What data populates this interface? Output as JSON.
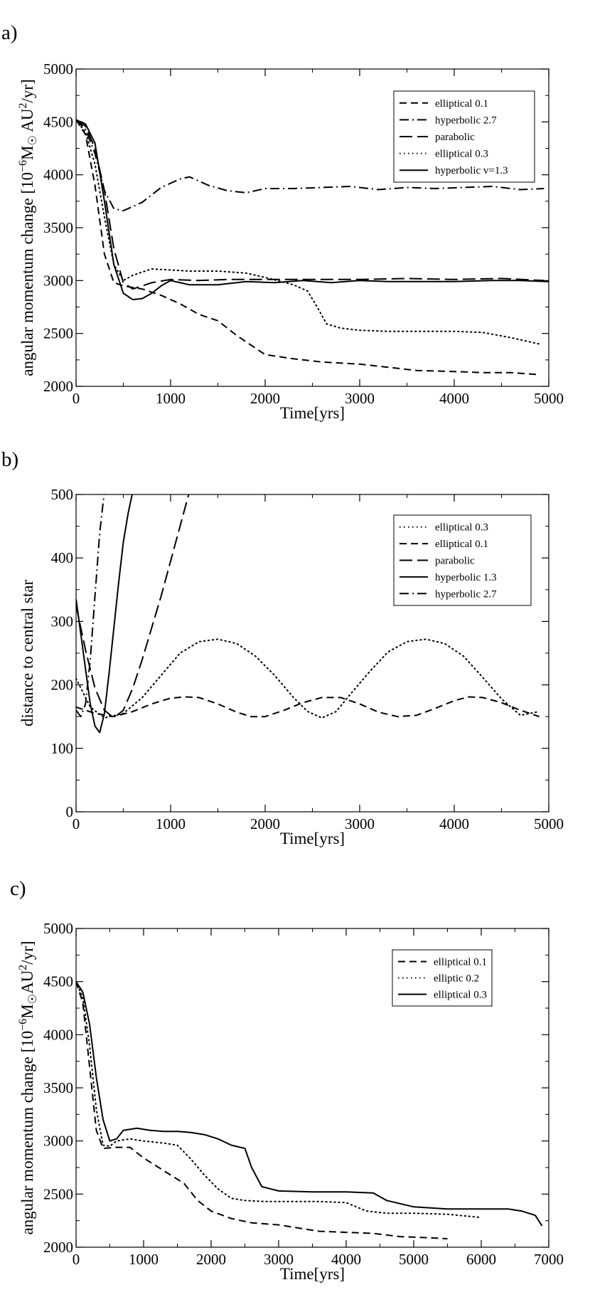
{
  "chart_data": [
    {
      "type": "line",
      "panel": "a)",
      "xlabel": "Time[yrs]",
      "ylabel": "angular momentum change [10^-6 M☉ AU²/yr]",
      "ylabel_parts": {
        "base": "angular momentum change [10",
        "exp1": "−6",
        "mass": "M",
        "sun": "☉",
        "au": " AU",
        "exp2": "2",
        "tail": "/yr]"
      },
      "xlim": [
        0,
        5000
      ],
      "ylim": [
        2000,
        5000
      ],
      "xticks": [
        0,
        1000,
        2000,
        3000,
        4000,
        5000
      ],
      "yticks": [
        2000,
        2500,
        3000,
        3500,
        4000,
        4500,
        5000
      ],
      "legend_position": "top-right",
      "series": [
        {
          "name": "elliptical 0.1",
          "dash": "short-dash",
          "x": [
            0,
            100,
            200,
            300,
            400,
            500,
            700,
            900,
            1100,
            1300,
            1500,
            1700,
            2000,
            2300,
            2600,
            3000,
            3300,
            3600,
            4000,
            4300,
            4600,
            4900
          ],
          "y": [
            4520,
            4380,
            3900,
            3250,
            2980,
            2950,
            2920,
            2860,
            2780,
            2680,
            2620,
            2480,
            2300,
            2260,
            2230,
            2210,
            2180,
            2150,
            2140,
            2130,
            2130,
            2110
          ]
        },
        {
          "name": "hyperbolic 2.7",
          "dash": "dash-dot",
          "x": [
            0,
            100,
            200,
            300,
            400,
            500,
            700,
            900,
            1100,
            1200,
            1400,
            1600,
            1800,
            2000,
            2300,
            2600,
            2900,
            3200,
            3500,
            3800,
            4100,
            4400,
            4700,
            4950
          ],
          "y": [
            4520,
            4430,
            4200,
            3850,
            3680,
            3660,
            3740,
            3880,
            3960,
            3980,
            3900,
            3850,
            3830,
            3870,
            3870,
            3880,
            3890,
            3860,
            3880,
            3870,
            3880,
            3890,
            3860,
            3870
          ]
        },
        {
          "name": "parabolic",
          "dash": "long-dash",
          "x": [
            0,
            100,
            200,
            300,
            400,
            500,
            600,
            800,
            1000,
            1300,
            1600,
            2000,
            2500,
            3000,
            3500,
            4000,
            4500,
            4950
          ],
          "y": [
            4520,
            4460,
            4250,
            3850,
            3300,
            2980,
            2920,
            2980,
            3010,
            3000,
            3010,
            3010,
            3010,
            3010,
            3020,
            3010,
            3020,
            3000
          ]
        },
        {
          "name": "elliptical 0.3",
          "dash": "dotted",
          "x": [
            0,
            100,
            200,
            300,
            400,
            500,
            600,
            800,
            1000,
            1200,
            1500,
            1800,
            2000,
            2300,
            2450,
            2550,
            2650,
            2800,
            3000,
            3300,
            3600,
            4000,
            4300,
            4600,
            4900
          ],
          "y": [
            4520,
            4400,
            4100,
            3600,
            3150,
            3000,
            3050,
            3110,
            3100,
            3090,
            3090,
            3070,
            3030,
            2960,
            2900,
            2750,
            2590,
            2550,
            2530,
            2520,
            2520,
            2520,
            2510,
            2460,
            2400
          ]
        },
        {
          "name": "hyperbolic v=1.3",
          "dash": "solid",
          "x": [
            0,
            100,
            200,
            300,
            400,
            500,
            600,
            700,
            800,
            900,
            1000,
            1200,
            1500,
            1800,
            2100,
            2400,
            2700,
            3000,
            3300,
            3600,
            4000,
            4400,
            4700,
            5000
          ],
          "y": [
            4520,
            4480,
            4300,
            3750,
            3150,
            2880,
            2820,
            2830,
            2880,
            2950,
            3000,
            2960,
            2960,
            2990,
            2980,
            3000,
            2980,
            3000,
            2990,
            2990,
            2990,
            3000,
            3000,
            2990
          ]
        }
      ],
      "legend_order": [
        0,
        1,
        2,
        3,
        4
      ]
    },
    {
      "type": "line",
      "panel": "b)",
      "xlabel": "Time[yrs]",
      "ylabel": "distance to central star",
      "xlim": [
        0,
        5000
      ],
      "ylim": [
        0,
        500
      ],
      "xticks": [
        0,
        1000,
        2000,
        3000,
        4000,
        5000
      ],
      "yticks": [
        0,
        100,
        200,
        300,
        400,
        500
      ],
      "legend_position": "top-right",
      "series": [
        {
          "name": "elliptical 0.3",
          "dash": "dotted",
          "x": [
            0,
            150,
            300,
            500,
            700,
            900,
            1100,
            1300,
            1500,
            1700,
            1900,
            2100,
            2300,
            2450,
            2600,
            2750,
            2900,
            3100,
            3300,
            3500,
            3700,
            3900,
            4100,
            4300,
            4500,
            4700,
            4900
          ],
          "y": [
            210,
            165,
            148,
            155,
            180,
            215,
            250,
            268,
            272,
            265,
            245,
            215,
            180,
            158,
            148,
            158,
            185,
            220,
            252,
            268,
            272,
            265,
            245,
            212,
            178,
            152,
            158
          ]
        },
        {
          "name": "elliptical 0.1",
          "dash": "short-dash",
          "x": [
            0,
            200,
            400,
            600,
            800,
            1000,
            1150,
            1300,
            1500,
            1700,
            1850,
            2000,
            2200,
            2400,
            2600,
            2800,
            3000,
            3200,
            3400,
            3600,
            3800,
            4000,
            4150,
            4300,
            4500,
            4700,
            4900
          ],
          "y": [
            165,
            155,
            150,
            158,
            170,
            179,
            181,
            180,
            170,
            157,
            150,
            150,
            160,
            172,
            180,
            180,
            170,
            157,
            150,
            152,
            163,
            175,
            181,
            180,
            172,
            160,
            150
          ]
        },
        {
          "name": "parabolic",
          "dash": "long-dash",
          "x": [
            0,
            100,
            200,
            300,
            400,
            500,
            600,
            700,
            800,
            900,
            1000,
            1100,
            1200
          ],
          "y": [
            325,
            255,
            195,
            160,
            148,
            160,
            195,
            240,
            290,
            340,
            395,
            450,
            505
          ]
        },
        {
          "name": "hyperbolic 1.3",
          "dash": "solid",
          "x": [
            0,
            50,
            100,
            150,
            200,
            250,
            300,
            350,
            400,
            450,
            500,
            550,
            600
          ],
          "y": [
            335,
            280,
            225,
            170,
            135,
            125,
            155,
            220,
            290,
            360,
            425,
            470,
            505
          ]
        },
        {
          "name": "hyperbolic 2.7",
          "dash": "dash-dot",
          "x": [
            0,
            50,
            100,
            150,
            200,
            250,
            300
          ],
          "y": [
            160,
            150,
            170,
            240,
            340,
            440,
            505
          ]
        }
      ],
      "legend_order": [
        0,
        1,
        2,
        3,
        4
      ]
    },
    {
      "type": "line",
      "panel": "c)",
      "xlabel": "Time[yrs]",
      "ylabel": "angular momentum change [10^-6 M☉ AU²/yr]",
      "ylabel_parts": {
        "base": "angular momentum change [10",
        "exp1": "−6",
        "mass": "M",
        "sun": "☉",
        "au": "AU",
        "exp2": "2",
        "tail": "/yr]"
      },
      "xlim": [
        0,
        7000
      ],
      "ylim": [
        2000,
        5000
      ],
      "xticks": [
        0,
        1000,
        2000,
        3000,
        4000,
        5000,
        6000,
        7000
      ],
      "yticks": [
        2000,
        2500,
        3000,
        3500,
        4000,
        4500,
        5000
      ],
      "legend_position": "top-right",
      "series": [
        {
          "name": "elliptical 0.1",
          "dash": "short-dash",
          "x": [
            0,
            100,
            200,
            300,
            400,
            600,
            800,
            1000,
            1200,
            1400,
            1600,
            1800,
            2000,
            2300,
            2600,
            3000,
            3300,
            3600,
            4000,
            4400,
            4800,
            5200,
            5500
          ],
          "y": [
            4500,
            4300,
            3700,
            3100,
            2930,
            2940,
            2940,
            2840,
            2760,
            2680,
            2600,
            2440,
            2340,
            2270,
            2230,
            2210,
            2180,
            2150,
            2140,
            2130,
            2100,
            2090,
            2080
          ]
        },
        {
          "name": "elliptic 0.2",
          "dash": "dotted",
          "x": [
            0,
            100,
            200,
            300,
            400,
            500,
            600,
            800,
            1000,
            1300,
            1500,
            1700,
            1900,
            2100,
            2300,
            2500,
            2800,
            3200,
            3600,
            4000,
            4300,
            4600,
            5000,
            5500,
            6000
          ],
          "y": [
            4500,
            4350,
            3900,
            3300,
            2960,
            2950,
            3000,
            3020,
            3000,
            2980,
            2960,
            2830,
            2680,
            2550,
            2460,
            2440,
            2430,
            2430,
            2430,
            2420,
            2340,
            2320,
            2320,
            2310,
            2280
          ]
        },
        {
          "name": "elliptical 0.3",
          "dash": "solid",
          "x": [
            0,
            100,
            200,
            300,
            400,
            500,
            600,
            700,
            900,
            1100,
            1300,
            1500,
            1700,
            1900,
            2100,
            2300,
            2500,
            2600,
            2750,
            3000,
            3500,
            4000,
            4400,
            4600,
            5000,
            5500,
            6000,
            6400,
            6600,
            6800,
            6900
          ],
          "y": [
            4500,
            4400,
            4100,
            3600,
            3200,
            3000,
            3020,
            3100,
            3120,
            3100,
            3090,
            3090,
            3080,
            3060,
            3020,
            2960,
            2930,
            2750,
            2570,
            2530,
            2520,
            2520,
            2510,
            2440,
            2380,
            2360,
            2360,
            2360,
            2340,
            2300,
            2200
          ]
        }
      ],
      "legend_order": [
        0,
        1,
        2
      ]
    }
  ]
}
